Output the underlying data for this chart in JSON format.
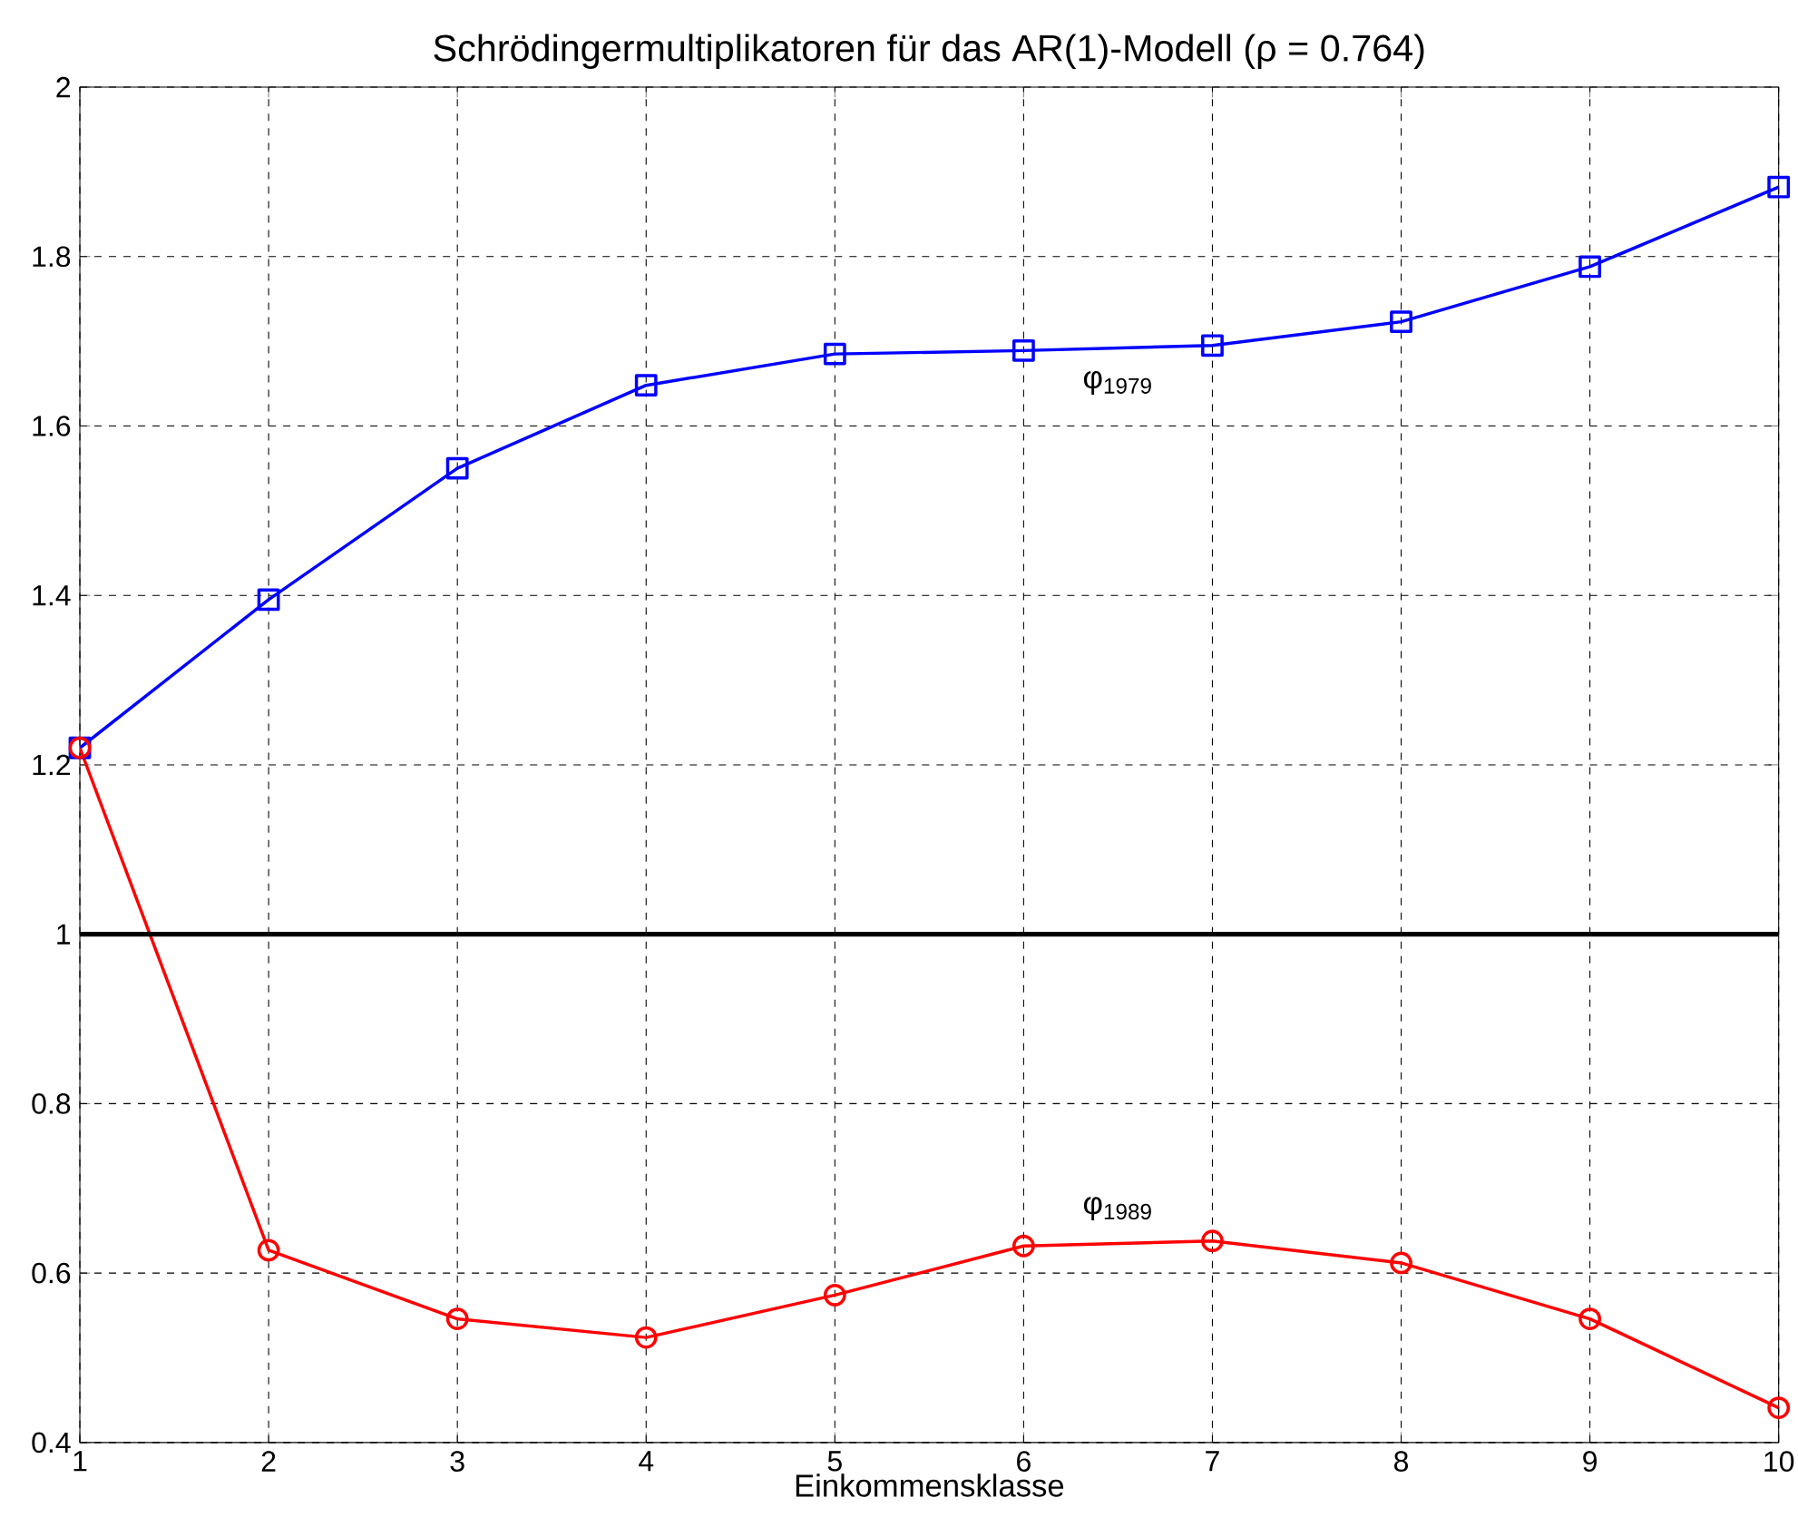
{
  "chart_data": {
    "type": "line",
    "title": "Schrödingermultiplikatoren für das AR(1)-Modell  (ρ = 0.764)",
    "xlabel": "Einkommensklasse",
    "x": [
      1,
      2,
      3,
      4,
      5,
      6,
      7,
      8,
      9,
      10
    ],
    "series": [
      {
        "color": "#0000ff",
        "marker": "square",
        "values": [
          1.22,
          1.395,
          1.55,
          1.648,
          1.685,
          1.689,
          1.695,
          1.723,
          1.788,
          1.882
        ]
      },
      {
        "color": "#ff0000",
        "marker": "circle",
        "values": [
          1.22,
          0.627,
          0.546,
          0.524,
          0.574,
          0.632,
          0.638,
          0.612,
          0.546,
          0.441
        ]
      }
    ],
    "xlim": [
      1,
      10
    ],
    "xticks": [
      1,
      2,
      3,
      4,
      5,
      6,
      7,
      8,
      9,
      10
    ],
    "ylim": [
      0.4,
      2
    ],
    "yticks": [
      0.4,
      0.6,
      0.8,
      1,
      1.2,
      1.4,
      1.6,
      1.8,
      2
    ],
    "ref_lines": [
      {
        "axis": "y",
        "value": 1,
        "color": "#000000"
      }
    ],
    "annotations": [
      "φ$_{1979}$",
      "φ$_{1989}$"
    ],
    "grid": true,
    "line_style": "solid"
  }
}
